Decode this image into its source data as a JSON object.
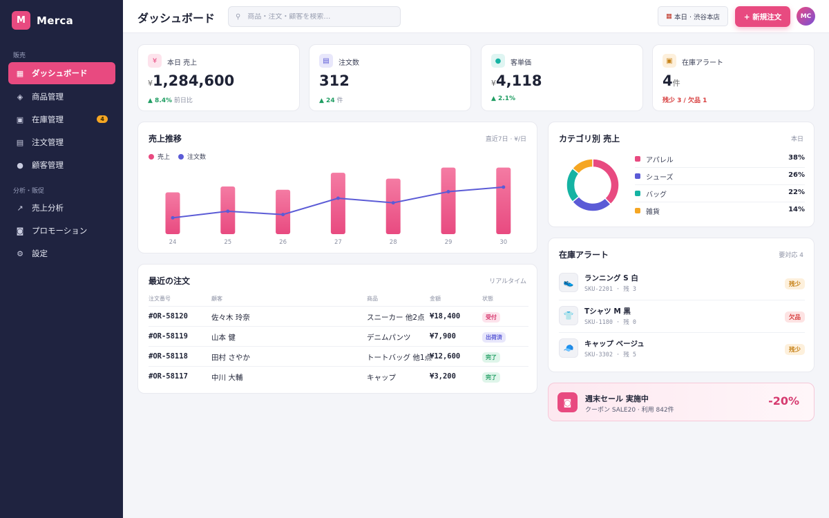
{
  "app": {
    "logo_letter": "M",
    "name": "Merca"
  },
  "sidebar": {
    "sections": [
      {
        "label": "販売"
      },
      {
        "label": "分析・販促"
      }
    ],
    "items": [
      {
        "label": "ダッシュボード",
        "icon": "grid-icon"
      },
      {
        "label": "商品管理",
        "icon": "tag-icon"
      },
      {
        "label": "在庫管理",
        "icon": "box-icon",
        "badge": "4"
      },
      {
        "label": "注文管理",
        "icon": "receipt-icon"
      },
      {
        "label": "顧客管理",
        "icon": "user-icon"
      },
      {
        "label": "売上分析",
        "icon": "chart-icon"
      },
      {
        "label": "プロモーション",
        "icon": "ticket-icon"
      },
      {
        "label": "設定",
        "icon": "gear-icon"
      }
    ]
  },
  "header": {
    "title": "ダッシュボード",
    "search_placeholder": "商品・注文・顧客を検索…",
    "store_label": "本日 · 渋谷本店",
    "new_order_label": "+ 新規注文",
    "avatar_initials": "MC"
  },
  "kpis": [
    {
      "label": "本日 売上",
      "prefix": "¥",
      "value": "1,284,600",
      "delta": "▲ 8.4%",
      "delta_note": "前日比",
      "icon": "yen-icon"
    },
    {
      "label": "注文数",
      "prefix": "",
      "value": "312",
      "delta": "▲ 24",
      "delta_note": "件",
      "icon": "receipt-icon"
    },
    {
      "label": "客単価",
      "prefix": "¥",
      "value": "4,118",
      "delta": "▲ 2.1%",
      "delta_note": "",
      "icon": "user-icon"
    },
    {
      "label": "在庫アラート",
      "prefix": "",
      "value": "4",
      "unit": "件",
      "delta": "残少 3 / 欠品 1",
      "delta_note": "",
      "icon": "box-icon"
    }
  ],
  "sales_chart": {
    "title": "売上推移",
    "meta": "直近7日 · ¥/日",
    "legend": [
      "売上",
      "注文数"
    ]
  },
  "chart_data": {
    "type": "bar",
    "categories": [
      "24",
      "25",
      "26",
      "27",
      "28",
      "29",
      "30"
    ],
    "series": [
      {
        "name": "売上",
        "type": "bar",
        "values": [
          64,
          73,
          68,
          94,
          85,
          102,
          102
        ]
      },
      {
        "name": "注文数",
        "type": "line",
        "values": [
          25,
          35,
          30,
          55,
          48,
          65,
          72
        ]
      }
    ],
    "ylim": [
      0,
      110
    ],
    "grid": false,
    "legend_position": "top-left",
    "colors": {
      "bar": "#e84a80",
      "line": "#5b5bd6"
    }
  },
  "orders": {
    "title": "最近の注文",
    "meta": "リアルタイム",
    "columns": [
      "注文番号",
      "顧客",
      "商品",
      "金額",
      "状態"
    ],
    "rows": [
      {
        "id": "#OR-58120",
        "customer": "佐々木 玲奈",
        "product": "スニーカー 他2点",
        "amount": "¥18,400",
        "status": "受付",
        "status_kind": "received"
      },
      {
        "id": "#OR-58119",
        "customer": "山本 健",
        "product": "デニムパンツ",
        "amount": "¥7,900",
        "status": "出荷済",
        "status_kind": "shipped"
      },
      {
        "id": "#OR-58118",
        "customer": "田村 さやか",
        "product": "トートバッグ 他1点",
        "amount": "¥12,600",
        "status": "完了",
        "status_kind": "done"
      },
      {
        "id": "#OR-58117",
        "customer": "中川 大輔",
        "product": "キャップ",
        "amount": "¥3,200",
        "status": "完了",
        "status_kind": "done"
      }
    ]
  },
  "category": {
    "title": "カテゴリ別 売上",
    "meta": "本日",
    "items": [
      {
        "name": "アパレル",
        "pct": "38%",
        "value": 38,
        "color": "#e84a80"
      },
      {
        "name": "シューズ",
        "pct": "26%",
        "value": 26,
        "color": "#5b5bd6"
      },
      {
        "name": "バッグ",
        "pct": "22%",
        "value": 22,
        "color": "#15b3a3"
      },
      {
        "name": "雑貨",
        "pct": "14%",
        "value": 14,
        "color": "#f5a623"
      }
    ]
  },
  "stock": {
    "title": "在庫アラート",
    "meta": "要対応 4",
    "items": [
      {
        "name": "ランニング S 白",
        "sku": "SKU-2201 · 残 3",
        "badge": "残少",
        "kind": "low",
        "icon": "shoe-icon"
      },
      {
        "name": "Tシャツ M 黒",
        "sku": "SKU-1180 · 残 0",
        "badge": "欠品",
        "kind": "out",
        "icon": "shirt-icon"
      },
      {
        "name": "キャップ ベージュ",
        "sku": "SKU-3302 · 残 5",
        "badge": "残少",
        "kind": "low",
        "icon": "cap-icon"
      }
    ]
  },
  "promo": {
    "title": "週末セール 実施中",
    "subtitle": "クーポン SALE20 · 利用 842件",
    "discount": "-20%"
  }
}
